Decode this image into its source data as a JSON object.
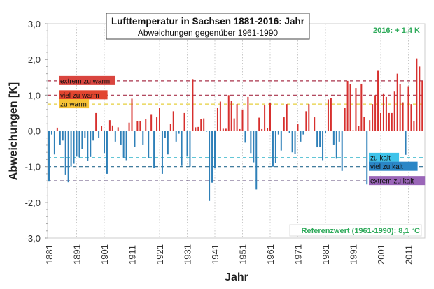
{
  "chart_data": {
    "type": "bar",
    "title": "Lufttemperatur in Sachsen 1881-2016: Jahr",
    "subtitle": "Abweichungen gegenüber 1961-1990",
    "xlabel": "Jahr",
    "ylabel": "Abweichungen [K]",
    "ylim": [
      -3.0,
      3.0
    ],
    "yticks": [
      "-3,0",
      "-2,0",
      "-1,0",
      "0,0",
      "1,0",
      "2,0",
      "3,0"
    ],
    "xticks": [
      "1881",
      "1891",
      "1901",
      "1911",
      "1921",
      "1931",
      "1941",
      "1951",
      "1961",
      "1971",
      "1981",
      "1991",
      "2001",
      "2011"
    ],
    "grid": "vertical dotted per decade",
    "x_start": 1881,
    "values": [
      -1.42,
      -0.1,
      -0.66,
      0.09,
      -0.4,
      -0.27,
      -1.22,
      -1.44,
      -1.0,
      -0.92,
      -0.72,
      -0.74,
      -0.5,
      -0.2,
      -0.83,
      -0.73,
      -0.27,
      0.5,
      -0.2,
      0.14,
      -0.62,
      -1.2,
      0.3,
      0.15,
      -0.3,
      0.1,
      -0.4,
      -0.75,
      -0.82,
      0.23,
      0.9,
      -0.45,
      0.27,
      0.27,
      -0.4,
      0.33,
      -0.75,
      0.45,
      -1.03,
      0.38,
      0.65,
      -1.2,
      -0.2,
      -0.66,
      0.2,
      0.55,
      -0.3,
      -0.08,
      -0.98,
      0.5,
      -0.72,
      -1.0,
      1.45,
      0.1,
      0.11,
      0.33,
      0.35,
      -0.02,
      -1.96,
      -1.45,
      -1.05,
      0.65,
      0.82,
      0.06,
      0.06,
      1.0,
      0.85,
      0.35,
      0.75,
      0.05,
      0.6,
      -0.33,
      0.95,
      -0.62,
      -0.88,
      -1.64,
      0.37,
      0.05,
      0.72,
      0.08,
      0.78,
      -1.0,
      -0.9,
      -0.1,
      -0.55,
      0.38,
      0.75,
      -0.05,
      -0.6,
      -0.65,
      0.2,
      -0.3,
      -0.1,
      0.55,
      0.75,
      0.01,
      0.38,
      -0.46,
      -0.45,
      -0.82,
      -0.07,
      0.88,
      0.92,
      -0.4,
      -0.78,
      -0.3,
      -1.12,
      0.65,
      1.4,
      1.3,
      0.02,
      1.2,
      0.14,
      1.32,
      0.4,
      -1.5,
      0.3,
      0.75,
      1.0,
      1.7,
      0.5,
      1.05,
      0.95,
      0.5,
      0.5,
      1.1,
      1.6,
      1.3,
      0.8,
      -0.67,
      1.25,
      0.75,
      0.27,
      2.03,
      1.8,
      1.4
    ],
    "colors": {
      "positive": "#d7302e",
      "negative": "#2f80b8"
    },
    "thresholds": [
      {
        "label": "extrem zu warm",
        "value": 1.4,
        "line": "#a8324a",
        "box": "#d9453f",
        "side": "left"
      },
      {
        "label": "viel zu warm",
        "value": 1.0,
        "line": "#a8324a",
        "box": "#e2452f",
        "side": "left"
      },
      {
        "label": "zu warm",
        "value": 0.75,
        "line": "#e6cf3c",
        "box": "#f6c236",
        "side": "left"
      },
      {
        "label": "zu kalt",
        "value": -0.75,
        "line": "#2fb3c9",
        "box": "#3ec3ea",
        "side": "right"
      },
      {
        "label": "viel zu kalt",
        "value": -1.0,
        "line": "#2a6b90",
        "box": "#2b86c6",
        "side": "right"
      },
      {
        "label": "extrem zu kalt",
        "value": -1.4,
        "line": "#5e4a78",
        "box": "#9a66b8",
        "side": "right"
      }
    ],
    "annotations": {
      "latest": "2016: + 1,4 K",
      "reference": "Referenzwert (1961-1990): 8,1 °C",
      "color": "#2eaa5a"
    }
  }
}
